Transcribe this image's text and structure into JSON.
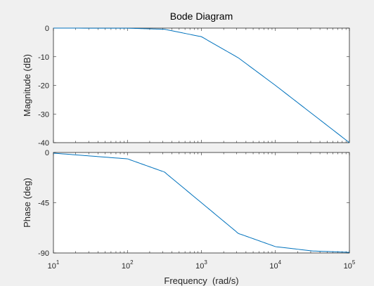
{
  "figure": {
    "background": "#f0f0f0",
    "axes_background": "#ffffff",
    "axis_color": "#262626",
    "line_color": "#0072bd"
  },
  "chart_data": [
    {
      "type": "line",
      "title": "Bode Diagram",
      "xlabel": "Frequency  (rad/s)",
      "ylabel": "Magnitude (dB)",
      "xscale": "log",
      "xlim": [
        10,
        100000
      ],
      "ylim": [
        -40,
        0
      ],
      "yticks": [
        0,
        -10,
        -20,
        -30,
        -40
      ],
      "ytick_labels": [
        "0",
        "-10",
        "-20",
        "-30",
        "-40"
      ],
      "x_exponent_ticks": [
        1,
        2,
        3,
        4,
        5
      ],
      "grid": false,
      "series": [
        {
          "color": "#0072bd",
          "x": [
            10,
            100,
            316,
            1000,
            3162,
            10000,
            31623,
            100000
          ],
          "y": [
            0,
            -0.04,
            -0.4,
            -3.0,
            -10.4,
            -20.0,
            -30.0,
            -40.0
          ]
        }
      ]
    },
    {
      "type": "line",
      "xlabel": "Frequency  (rad/s)",
      "ylabel": "Phase (deg)",
      "xscale": "log",
      "xlim": [
        10,
        100000
      ],
      "ylim": [
        -90,
        0
      ],
      "yticks": [
        0,
        -45,
        -90
      ],
      "ytick_labels": [
        "0",
        "-45",
        "-90"
      ],
      "x_exponent_ticks": [
        1,
        2,
        3,
        4,
        5
      ],
      "grid": false,
      "series": [
        {
          "color": "#0072bd",
          "x": [
            10,
            100,
            316,
            1000,
            3162,
            10000,
            31623,
            100000
          ],
          "y": [
            -0.6,
            -5.7,
            -17.5,
            -45.0,
            -72.5,
            -84.3,
            -88.2,
            -89.4
          ]
        }
      ]
    }
  ],
  "tick_base": "10"
}
